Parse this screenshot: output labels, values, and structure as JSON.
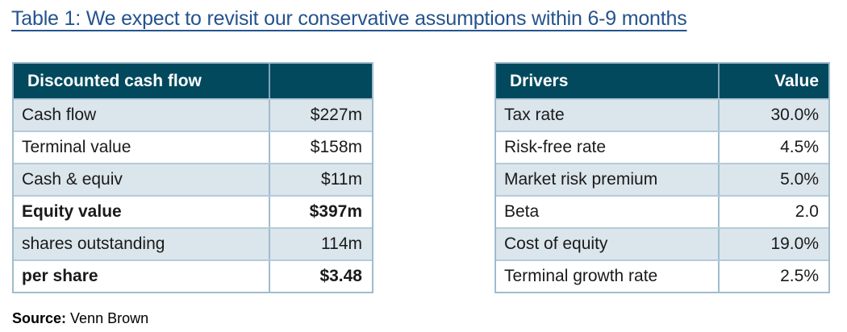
{
  "title": "Table 1: We expect to revisit our conservative assumptions within 6-9 months",
  "colors": {
    "header_bg": "#02495e",
    "row_alt_bg": "#dbe5ec",
    "border": "#9fbdce",
    "border_light": "#b3cbd9",
    "header_divider": "#7fa5ba",
    "title_blue": "#24538e"
  },
  "tables": [
    {
      "name": "discounted-cash-flow",
      "header": {
        "label": "Discounted cash flow",
        "value": ""
      },
      "rows": [
        {
          "label": "Cash flow",
          "value": "$227m",
          "bold": false
        },
        {
          "label": "Terminal value",
          "value": "$158m",
          "bold": false
        },
        {
          "label": "Cash & equiv",
          "value": "$11m",
          "bold": false
        },
        {
          "label": "Equity value",
          "value": "$397m",
          "bold": true
        },
        {
          "label": "shares outstanding",
          "value": "114m",
          "bold": false
        },
        {
          "label": "per share",
          "value": "$3.48",
          "bold": true
        }
      ]
    },
    {
      "name": "drivers",
      "header": {
        "label": "Drivers",
        "value": "Value"
      },
      "rows": [
        {
          "label": "Tax rate",
          "value": "30.0%",
          "bold": false
        },
        {
          "label": "Risk-free rate",
          "value": "4.5%",
          "bold": false
        },
        {
          "label": "Market risk premium",
          "value": "5.0%",
          "bold": false
        },
        {
          "label": "Beta",
          "value": "2.0",
          "bold": false
        },
        {
          "label": "Cost of equity",
          "value": "19.0%",
          "bold": false
        },
        {
          "label": "Terminal growth rate",
          "value": "2.5%",
          "bold": false
        }
      ]
    }
  ],
  "source": {
    "label": "Source:",
    "text": " Venn Brown"
  }
}
